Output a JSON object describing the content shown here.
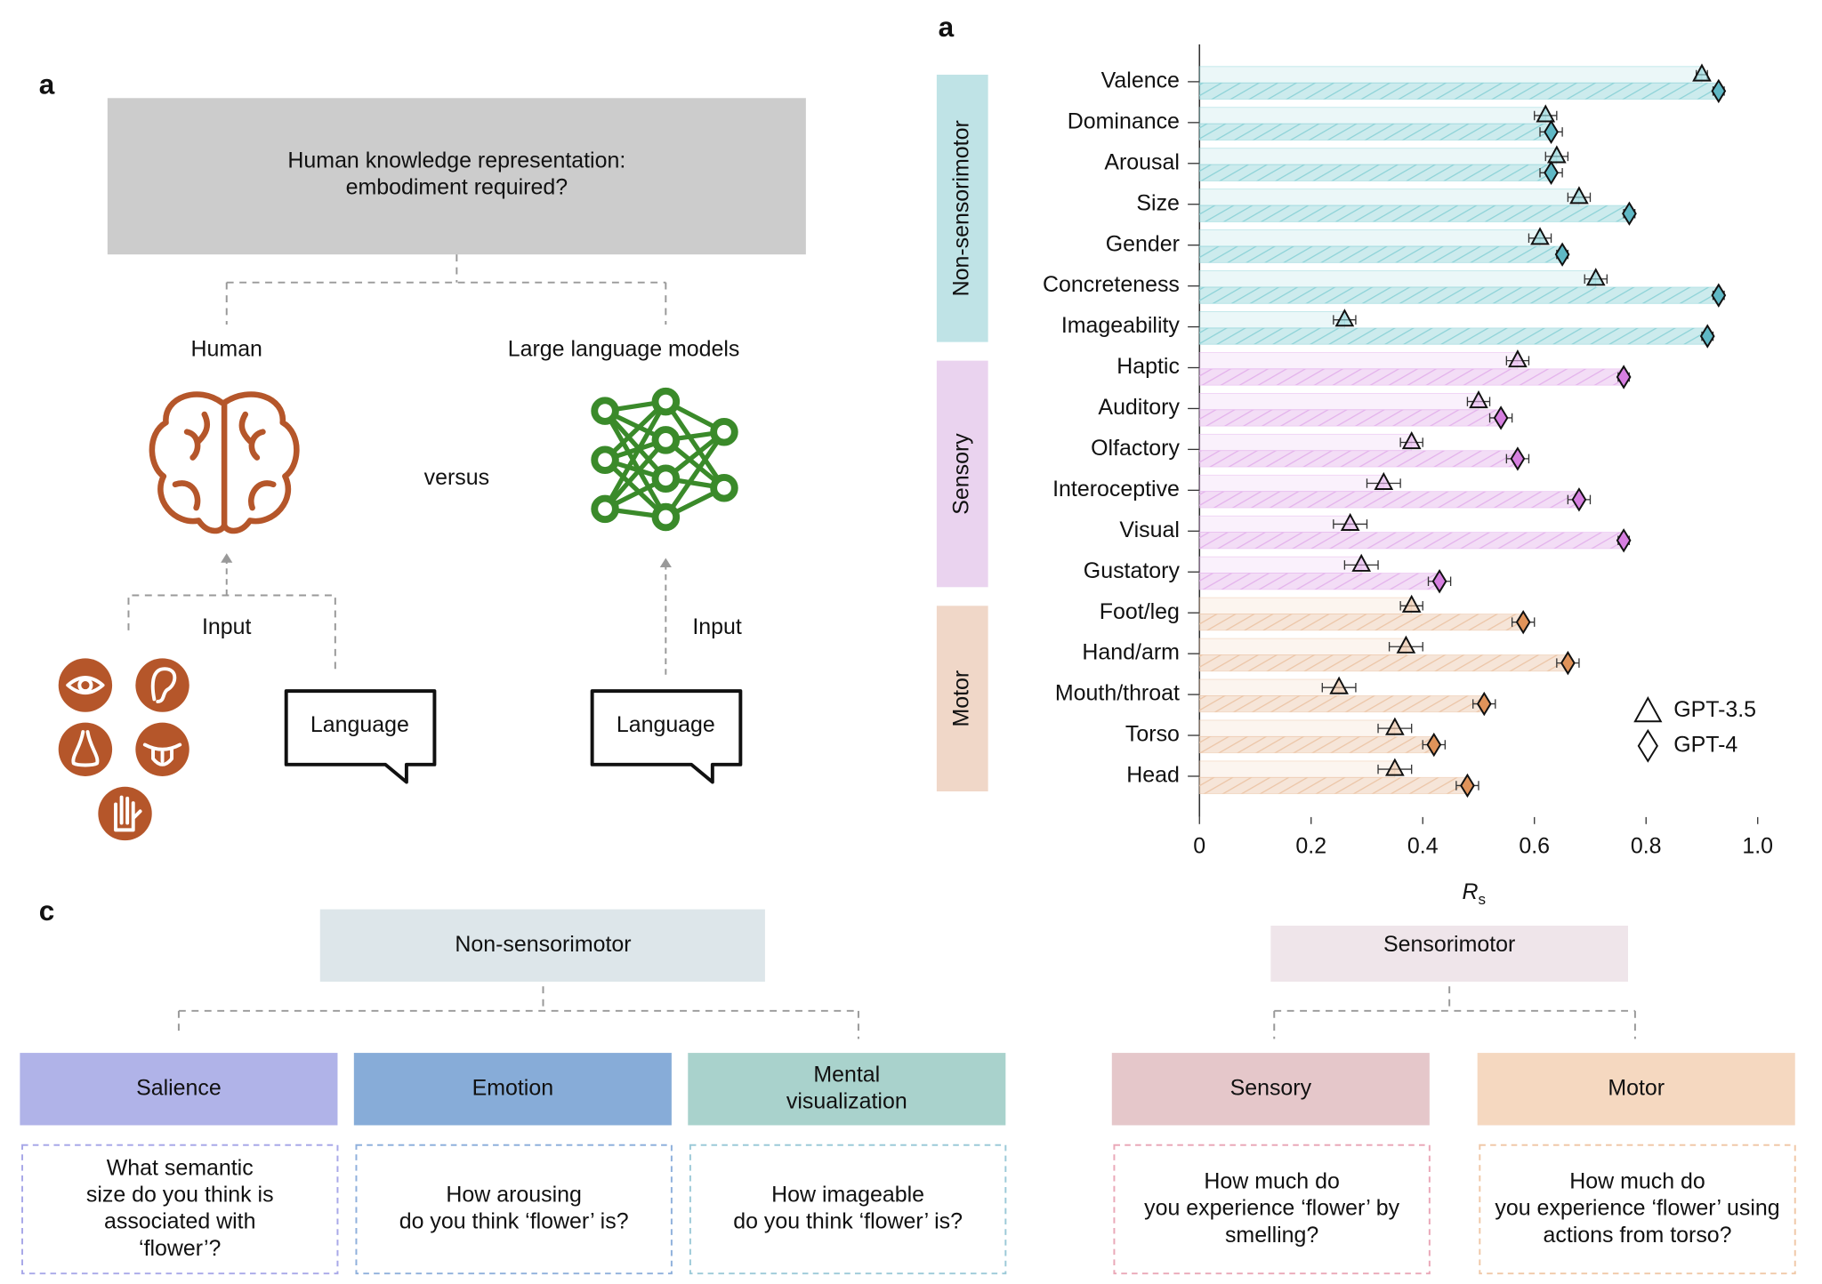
{
  "panel_labels": [
    "a",
    "a",
    "c"
  ],
  "diagram": {
    "question": [
      "Human knowledge representation:",
      "embodiment required?"
    ],
    "human": "Human",
    "llm": "Large language models",
    "versus": "versus",
    "human_input": "Input",
    "llm_input": "Input",
    "human_language": "Language",
    "llm_language": "Language"
  },
  "dimensions": {
    "left": {
      "title": "Non-sensorimotor",
      "color": "#dde6ea",
      "boxes": [
        {
          "name": [
            "Salience"
          ],
          "color": "#b0b3e8",
          "border": "#a8a8e8",
          "question": [
            "What semantic",
            "size do you think is",
            "associated with",
            "‘flower’?"
          ]
        },
        {
          "name": [
            "Emotion"
          ],
          "color": "#87acd8",
          "border": "#8fb0dc",
          "question": [
            "How arousing",
            "do you think ‘flower’ is?"
          ]
        },
        {
          "name": [
            "Mental",
            "visualization"
          ],
          "color": "#a9d2cc",
          "border": "#9ccad8",
          "question": [
            "How imageable",
            "do you think ‘flower’ is?"
          ]
        }
      ]
    },
    "right": {
      "title": "Sensorimotor",
      "color": "#efe5ea",
      "boxes": [
        {
          "name": [
            "Sensory"
          ],
          "color": "#e5c7ca",
          "border": "#eaa8b8",
          "question": [
            "How much do",
            "you experience ‘flower’ by",
            "smelling?"
          ]
        },
        {
          "name": [
            "Motor"
          ],
          "color": "#f5d8c0",
          "border": "#f0c8a8",
          "question": [
            "How much do",
            "you experience ‘flower’ using",
            "actions from torso?"
          ]
        }
      ]
    }
  },
  "chart_data": {
    "type": "hbar",
    "categories": [
      "Valence",
      "Dominance",
      "Arousal",
      "Size",
      "Gender",
      "Concreteness",
      "Imageability",
      "Haptic",
      "Auditory",
      "Olfactory",
      "Interoceptive",
      "Visual",
      "Gustatory",
      "Foot/leg",
      "Hand/arm",
      "Mouth/throat",
      "Torso",
      "Head"
    ],
    "groups": [
      {
        "name": "Non-sensorimotor",
        "color": "#8fd3d8",
        "label_color": "#bfe3e6",
        "marker_color": "#5fb8c5",
        "categories": [
          "Valence",
          "Dominance",
          "Arousal",
          "Size",
          "Gender",
          "Concreteness",
          "Imageability"
        ]
      },
      {
        "name": "Sensory",
        "color": "#e4b3ec",
        "label_color": "#ead3ef",
        "marker_color": "#d67fe0",
        "categories": [
          "Haptic",
          "Auditory",
          "Olfactory",
          "Interoceptive",
          "Visual",
          "Gustatory"
        ]
      },
      {
        "name": "Motor",
        "color": "#ecc6a8",
        "label_color": "#f0d7c8",
        "marker_color": "#e0935a",
        "categories": [
          "Foot/leg",
          "Hand/arm",
          "Mouth/throat",
          "Torso",
          "Head"
        ]
      }
    ],
    "series": [
      {
        "name": "GPT-3.5",
        "marker": "triangle",
        "values": [
          0.9,
          0.62,
          0.64,
          0.68,
          0.61,
          0.71,
          0.26,
          0.57,
          0.5,
          0.38,
          0.33,
          0.27,
          0.29,
          0.38,
          0.37,
          0.25,
          0.35,
          0.35
        ],
        "errors": [
          0.01,
          0.02,
          0.02,
          0.02,
          0.02,
          0.02,
          0.02,
          0.02,
          0.02,
          0.02,
          0.03,
          0.03,
          0.03,
          0.02,
          0.03,
          0.03,
          0.03,
          0.03
        ]
      },
      {
        "name": "GPT-4",
        "marker": "diamond",
        "values": [
          0.93,
          0.63,
          0.63,
          0.77,
          0.65,
          0.93,
          0.91,
          0.76,
          0.54,
          0.57,
          0.68,
          0.76,
          0.43,
          0.58,
          0.66,
          0.51,
          0.42,
          0.48
        ],
        "errors": [
          0.01,
          0.02,
          0.02,
          0.01,
          0.01,
          0.01,
          0.01,
          0.01,
          0.02,
          0.02,
          0.02,
          0.01,
          0.02,
          0.02,
          0.02,
          0.02,
          0.02,
          0.02
        ]
      }
    ],
    "xlim": [
      0,
      1
    ],
    "xticks": [
      0,
      0.2,
      0.4,
      0.6,
      0.8,
      {
        "value": 1,
        "label": "1.0"
      }
    ],
    "x_label": "R",
    "x_label_sub": "s",
    "legend": "lower right"
  }
}
